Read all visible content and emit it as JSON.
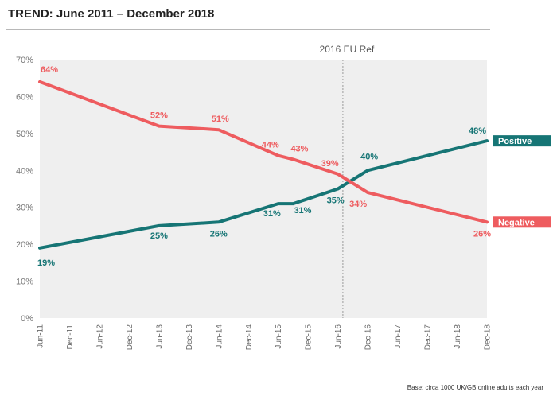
{
  "title": "TREND: June 2011 – December 2018",
  "footnote": "Base: circa 1000 UK/GB online adults each year",
  "colors": {
    "positive": "#167575",
    "negative": "#ee5c5f",
    "plot_bg": "#efefef"
  },
  "chart_data": {
    "type": "line",
    "x": [
      "Jun-11",
      "Dec-11",
      "Jun-12",
      "Dec-12",
      "Jun-13",
      "Dec-13",
      "Jun-14",
      "Dec-14",
      "Jun-15",
      "Dec-15",
      "Jun-16",
      "Dec-16",
      "Jun-17",
      "Dec-17",
      "Jun-18",
      "Dec-18"
    ],
    "ylim": [
      0,
      70
    ],
    "yticks": [
      "0%",
      "10%",
      "20%",
      "30%",
      "40%",
      "50%",
      "60%",
      "70%"
    ],
    "series": [
      {
        "name": "Positive",
        "points": [
          [
            "Jun-11",
            19
          ],
          [
            "Jun-13",
            25
          ],
          [
            "Jun-14",
            26
          ],
          [
            "Jun-15",
            31
          ],
          [
            "Sep-15",
            31
          ],
          [
            "Jun-16",
            35
          ],
          [
            "Dec-16",
            40
          ],
          [
            "Dec-18",
            48
          ]
        ],
        "labels": [
          "19%",
          "25%",
          "26%",
          "31%",
          "31%",
          "35%",
          "40%",
          "48%"
        ]
      },
      {
        "name": "Negative",
        "points": [
          [
            "Jun-11",
            64
          ],
          [
            "Jun-13",
            52
          ],
          [
            "Jun-14",
            51
          ],
          [
            "Jun-15",
            44
          ],
          [
            "Sep-15",
            43
          ],
          [
            "Jun-16",
            39
          ],
          [
            "Dec-16",
            34
          ],
          [
            "Dec-18",
            26
          ]
        ],
        "labels": [
          "64%",
          "52%",
          "51%",
          "44%",
          "43%",
          "39%",
          "34%",
          "26%"
        ]
      }
    ],
    "annotations": [
      {
        "text": "2016 EU Ref",
        "x": "Jul-16"
      }
    ]
  }
}
